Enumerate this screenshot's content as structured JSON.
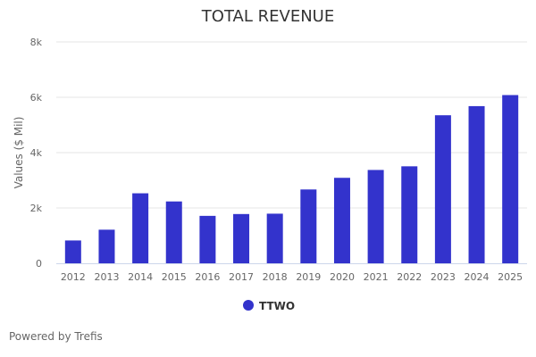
{
  "chart_data": {
    "type": "bar",
    "title": "TOTAL REVENUE",
    "ylabel": "Values ($ Mil)",
    "xlabel": "",
    "ylim": [
      0,
      8000
    ],
    "yticks": [
      0,
      2000,
      4000,
      6000,
      8000
    ],
    "ytick_labels": [
      "0",
      "2k",
      "4k",
      "6k",
      "8k"
    ],
    "grid": true,
    "legend_position": "bottom-center",
    "categories": [
      "2012",
      "2013",
      "2014",
      "2015",
      "2016",
      "2017",
      "2018",
      "2019",
      "2020",
      "2021",
      "2022",
      "2023",
      "2024",
      "2025"
    ],
    "series": [
      {
        "name": "TTWO",
        "color": "#3333cc",
        "values": [
          825,
          1214,
          2530,
          2235,
          1714,
          1780,
          1793,
          2668,
          3089,
          3373,
          3505,
          5350,
          5680,
          6080
        ]
      }
    ]
  },
  "footer": {
    "credit": "Powered by Trefis"
  }
}
